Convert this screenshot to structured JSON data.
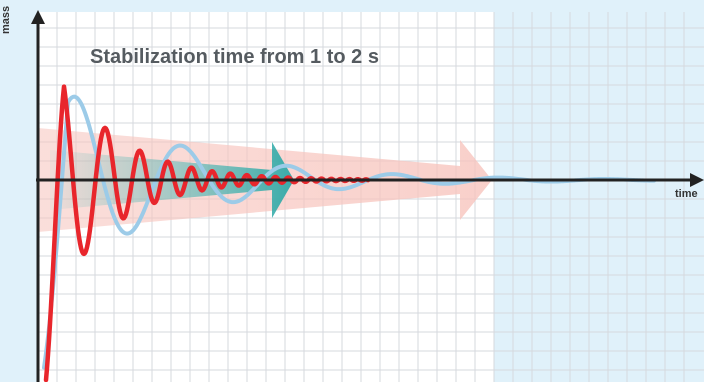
{
  "diagram": {
    "title": "Stabilization time from 1 to 2 s",
    "y_axis_label": "mass",
    "x_axis_label": "time"
  },
  "colors": {
    "background_right": "#e0f1fa",
    "grid_area": "#ffffff",
    "grid_line": "#d6d9de",
    "axis": "#222222",
    "fast_curve": "#e8262c",
    "slow_curve": "#9ccbe8",
    "fast_arrow": "#3bb3b0",
    "slow_arrow": "#f7c4bd"
  }
}
